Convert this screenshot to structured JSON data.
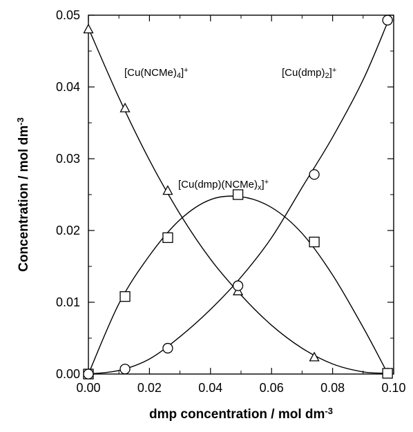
{
  "chart_data": {
    "type": "scatter",
    "xlabel": "dmp concentration / mol  dm",
    "xlabel_exp": "-3",
    "ylabel": "Concentration / mol  dm",
    "ylabel_exp": "-3",
    "xlim": [
      0.0,
      0.1
    ],
    "ylim": [
      0.0,
      0.05
    ],
    "xticks": [
      "0.00",
      "0.02",
      "0.04",
      "0.06",
      "0.08",
      "0.10"
    ],
    "yticks": [
      "0.00",
      "0.01",
      "0.02",
      "0.03",
      "0.04",
      "0.05"
    ],
    "grid": false,
    "series": [
      {
        "marker": "triangle",
        "label_parts": [
          "[Cu(NCMe)",
          "4",
          "]",
          "+"
        ],
        "x": [
          0.0,
          0.012,
          0.026,
          0.049,
          0.074,
          0.098
        ],
        "y": [
          0.048,
          0.037,
          0.0255,
          0.0115,
          0.0023,
          0.0001
        ],
        "curve_x": [
          0.0,
          0.01,
          0.02,
          0.03,
          0.04,
          0.05,
          0.06,
          0.07,
          0.08,
          0.09,
          0.098
        ],
        "curve_y": [
          0.0482,
          0.0385,
          0.0298,
          0.0223,
          0.016,
          0.011,
          0.0068,
          0.0036,
          0.0014,
          0.0003,
          0.0001
        ]
      },
      {
        "marker": "square",
        "label_parts": [
          "[Cu(dmp)(NCMe)",
          "x",
          "]",
          "+"
        ],
        "x": [
          0.0,
          0.012,
          0.026,
          0.049,
          0.074,
          0.098
        ],
        "y": [
          0.0,
          0.0108,
          0.019,
          0.025,
          0.0184,
          0.0001
        ],
        "curve_x": [
          0.0,
          0.01,
          0.02,
          0.03,
          0.04,
          0.05,
          0.06,
          0.07,
          0.08,
          0.09,
          0.098
        ],
        "curve_y": [
          0.0,
          0.0098,
          0.0165,
          0.0215,
          0.0243,
          0.0247,
          0.0232,
          0.0196,
          0.0138,
          0.0065,
          0.0001
        ]
      },
      {
        "marker": "circle",
        "label_parts": [
          "[Cu(dmp)",
          "2",
          "]",
          "+"
        ],
        "x": [
          0.0,
          0.012,
          0.026,
          0.049,
          0.074,
          0.098
        ],
        "y": [
          0.0,
          0.0007,
          0.0036,
          0.0123,
          0.0278,
          0.0493
        ],
        "curve_x": [
          0.0,
          0.01,
          0.02,
          0.03,
          0.04,
          0.05,
          0.06,
          0.07,
          0.08,
          0.09,
          0.098
        ],
        "curve_y": [
          0.0,
          0.0005,
          0.0021,
          0.0052,
          0.009,
          0.0135,
          0.019,
          0.026,
          0.033,
          0.041,
          0.049
        ]
      }
    ]
  }
}
